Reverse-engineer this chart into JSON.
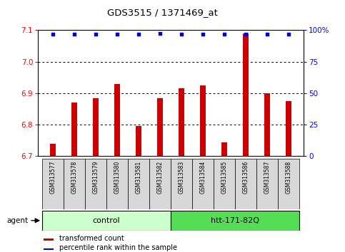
{
  "title": "GDS3515 / 1371469_at",
  "samples": [
    "GSM313577",
    "GSM313578",
    "GSM313579",
    "GSM313580",
    "GSM313581",
    "GSM313582",
    "GSM313583",
    "GSM313584",
    "GSM313585",
    "GSM313586",
    "GSM313587",
    "GSM313588"
  ],
  "bar_values": [
    6.74,
    6.87,
    6.885,
    6.93,
    6.795,
    6.885,
    6.915,
    6.925,
    6.745,
    7.09,
    6.9,
    6.875
  ],
  "percentile_values": [
    97,
    97,
    97,
    97,
    97,
    97.5,
    97,
    97,
    97,
    97,
    97,
    97
  ],
  "bar_color": "#cc0000",
  "dot_color": "#0000cc",
  "ylim_left": [
    6.7,
    7.1
  ],
  "ylim_right": [
    0,
    100
  ],
  "yticks_left": [
    6.7,
    6.8,
    6.9,
    7.0,
    7.1
  ],
  "yticks_right": [
    0,
    25,
    50,
    75,
    100
  ],
  "ytick_labels_right": [
    "0",
    "25",
    "50",
    "75",
    "100%"
  ],
  "groups": [
    {
      "label": "control",
      "indices": [
        0,
        1,
        2,
        3,
        4,
        5
      ],
      "color": "#ccffcc"
    },
    {
      "label": "htt-171-82Q",
      "indices": [
        6,
        7,
        8,
        9,
        10,
        11
      ],
      "color": "#55dd55"
    }
  ],
  "agent_label": "agent",
  "legend_bar_label": "transformed count",
  "legend_dot_label": "percentile rank within the sample",
  "bar_width": 0.25,
  "background_color": "#ffffff"
}
